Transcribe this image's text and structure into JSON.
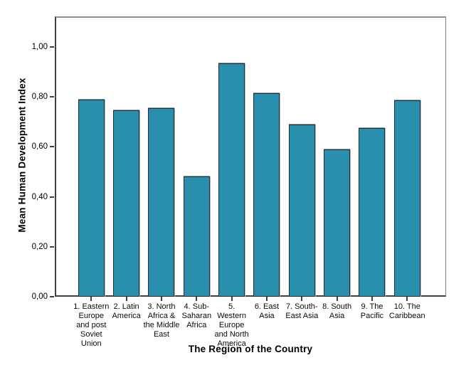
{
  "chart_data": {
    "type": "bar",
    "title": "",
    "xlabel": "The Region of the Country",
    "ylabel": "Mean Human Development Index",
    "categories": [
      {
        "id": "eastern-europe-post-soviet",
        "label_lines": [
          "1. Eastern",
          "Europe",
          "and post",
          "Soviet",
          "Union"
        ]
      },
      {
        "id": "latin-america",
        "label_lines": [
          "2. Latin",
          "America"
        ]
      },
      {
        "id": "north-africa-middle-east",
        "label_lines": [
          "3. North",
          "Africa &",
          "the Middle",
          "East"
        ]
      },
      {
        "id": "sub-saharan-africa",
        "label_lines": [
          "4. Sub-",
          "Saharan",
          "Africa"
        ]
      },
      {
        "id": "western-europe-north-america",
        "label_lines": [
          "5.",
          "Western",
          "Europe",
          "and North",
          "America"
        ]
      },
      {
        "id": "east-asia",
        "label_lines": [
          "6. East",
          "Asia"
        ]
      },
      {
        "id": "south-east-asia",
        "label_lines": [
          "7. South-",
          "East Asia"
        ]
      },
      {
        "id": "south-asia",
        "label_lines": [
          "8. South",
          "Asia"
        ]
      },
      {
        "id": "the-pacific",
        "label_lines": [
          "9. The",
          "Pacific"
        ]
      },
      {
        "id": "the-caribbean",
        "label_lines": [
          "10. The",
          "Caribbean"
        ]
      }
    ],
    "values": [
      0.79,
      0.745,
      0.755,
      0.48,
      0.935,
      0.815,
      0.69,
      0.59,
      0.675,
      0.785
    ],
    "yticks": {
      "values": [
        0,
        0.2,
        0.4,
        0.6,
        0.8,
        1.0
      ],
      "labels": [
        "0,00",
        "0,20",
        "0,40",
        "0,60",
        "0,80",
        "1,00"
      ]
    },
    "ylim": [
      0,
      1.122
    ],
    "grid": false,
    "legend": null,
    "colors": {
      "bar_fill": "#2a8fad",
      "bar_border": "#203039",
      "axis_dark": "#404040",
      "frame_gray": "#8f8f8f",
      "text": "#000000"
    }
  }
}
